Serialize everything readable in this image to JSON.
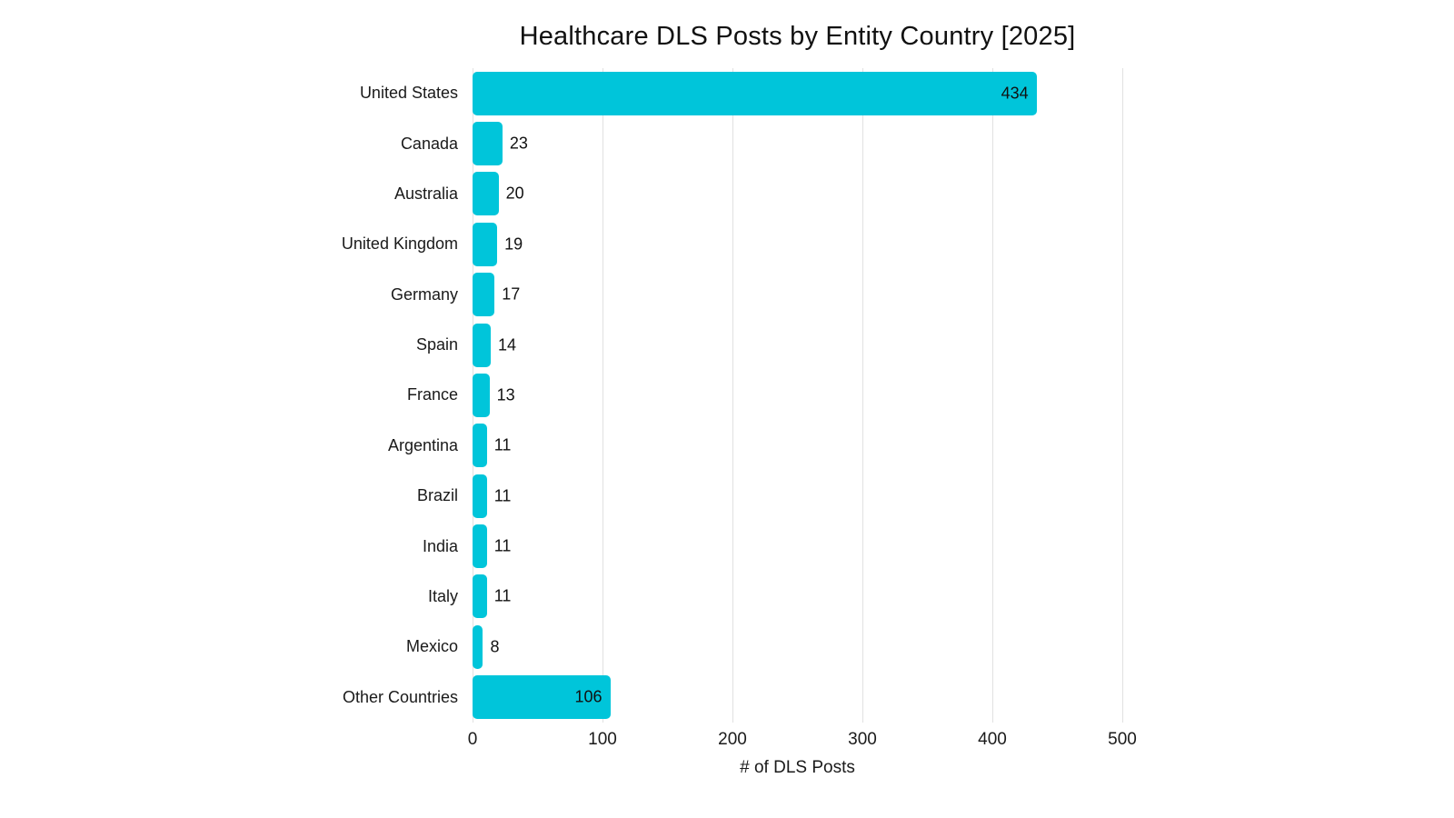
{
  "chart_data": {
    "type": "bar",
    "orientation": "horizontal",
    "title": "Healthcare DLS Posts by Entity Country [2025]",
    "categories": [
      "United States",
      "Canada",
      "Australia",
      "United Kingdom",
      "Germany",
      "Spain",
      "France",
      "Argentina",
      "Brazil",
      "India",
      "Italy",
      "Mexico",
      "Other Countries"
    ],
    "values": [
      434,
      23,
      20,
      19,
      17,
      14,
      13,
      11,
      11,
      11,
      11,
      8,
      106
    ],
    "xlabel": "# of DLS Posts",
    "ylabel": "",
    "xlim": [
      0,
      500
    ],
    "xticks": [
      0,
      100,
      200,
      300,
      400,
      500
    ],
    "grid": true,
    "legend": "none",
    "bar_color": "#00C5DA",
    "label_color": "#111111",
    "gridline_color": "#e1e1e1",
    "value_label_inside_threshold": 100
  }
}
